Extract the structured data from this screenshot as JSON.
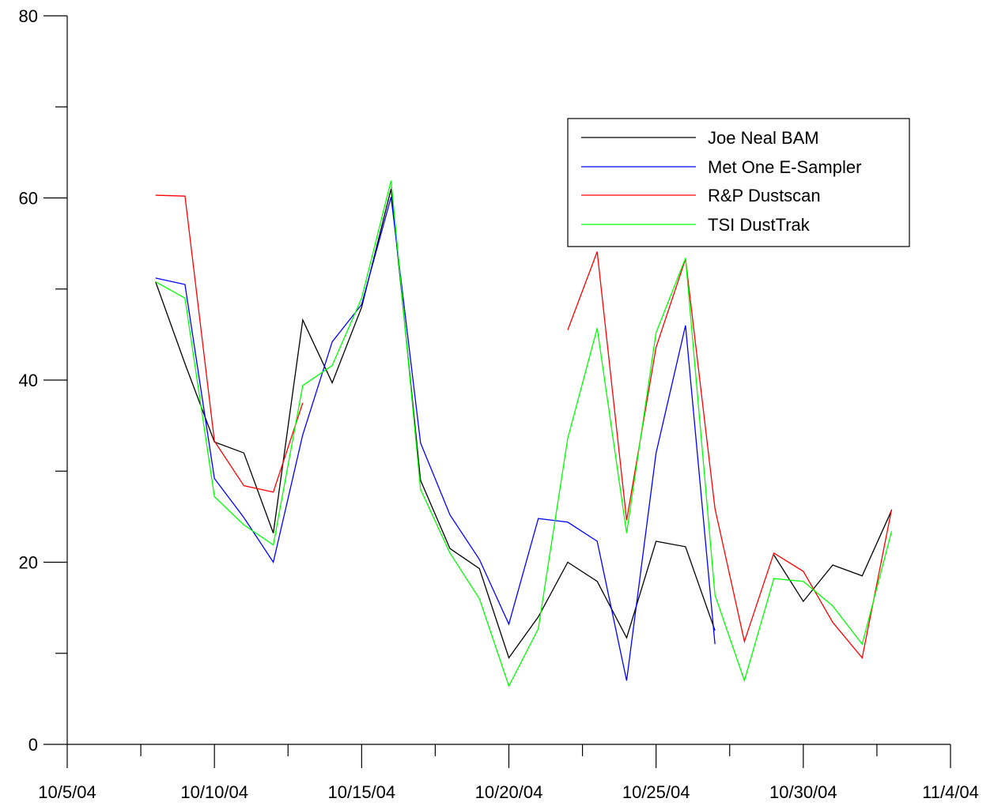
{
  "chart_data": {
    "type": "line",
    "title": "",
    "xlabel": "",
    "ylabel": "",
    "x_axis": {
      "range": [
        "10/5/04",
        "11/4/04"
      ],
      "major_tick_labels": [
        "10/5/04",
        "10/10/04",
        "10/15/04",
        "10/20/04",
        "10/25/04",
        "10/30/04",
        "11/4/04"
      ],
      "major_tick_days": [
        0,
        5,
        10,
        15,
        20,
        25,
        30
      ],
      "minor_tick_days": [
        2.5,
        7.5,
        12.5,
        17.5,
        22.5,
        27.5
      ]
    },
    "y_axis": {
      "range": [
        0,
        80
      ],
      "major_tick_labels": [
        "0",
        "20",
        "40",
        "60",
        "80"
      ],
      "major_ticks": [
        0,
        20,
        40,
        60,
        80
      ],
      "minor_ticks": [
        10,
        30,
        50,
        70
      ]
    },
    "grid": false,
    "legend_position": "top-right",
    "x_dates": [
      "10/8/04",
      "10/9/04",
      "10/10/04",
      "10/11/04",
      "10/12/04",
      "10/13/04",
      "10/14/04",
      "10/15/04",
      "10/16/04",
      "10/17/04",
      "10/18/04",
      "10/19/04",
      "10/20/04",
      "10/21/04",
      "10/22/04",
      "10/23/04",
      "10/24/04",
      "10/25/04",
      "10/26/04",
      "10/27/04",
      "10/28/04",
      "10/29/04",
      "10/30/04",
      "10/31/04",
      "11/1/04",
      "11/2/04"
    ],
    "series": [
      {
        "name": "Joe Neal BAM",
        "color": "#000000",
        "values": [
          50.8,
          41.8,
          33.2,
          32.0,
          23.2,
          46.6,
          39.7,
          48.0,
          61.0,
          29.0,
          21.5,
          19.3,
          9.5,
          14.0,
          20.0,
          17.9,
          11.7,
          22.3,
          21.7,
          12.5,
          null,
          20.8,
          15.7,
          19.7,
          18.5,
          25.7
        ]
      },
      {
        "name": "Met One E-Sampler",
        "color": "#0000ff",
        "values": [
          51.2,
          50.5,
          29.2,
          24.9,
          20.0,
          34.0,
          44.2,
          48.3,
          60.1,
          33.1,
          25.2,
          20.3,
          13.2,
          24.8,
          24.4,
          22.3,
          7.0,
          32.0,
          46.0,
          11.0,
          null,
          null,
          null,
          null,
          null,
          null
        ]
      },
      {
        "name": "R&P Dustscan",
        "color": "#ff0000",
        "values": [
          60.3,
          60.2,
          33.3,
          28.4,
          27.7,
          37.5,
          null,
          null,
          null,
          null,
          null,
          null,
          null,
          null,
          45.5,
          54.1,
          24.6,
          43.6,
          53.3,
          25.9,
          11.3,
          21.0,
          19.0,
          13.4,
          9.5,
          25.8
        ]
      },
      {
        "name": "TSI DustTrak",
        "color": "#00ff00",
        "values": [
          50.8,
          49.0,
          27.2,
          24.1,
          21.9,
          39.4,
          41.6,
          49.0,
          61.9,
          28.0,
          21.0,
          16.0,
          6.4,
          12.7,
          33.6,
          45.7,
          23.2,
          45.2,
          53.4,
          16.4,
          7.0,
          18.2,
          17.9,
          15.2,
          11.0,
          23.4
        ]
      }
    ]
  }
}
